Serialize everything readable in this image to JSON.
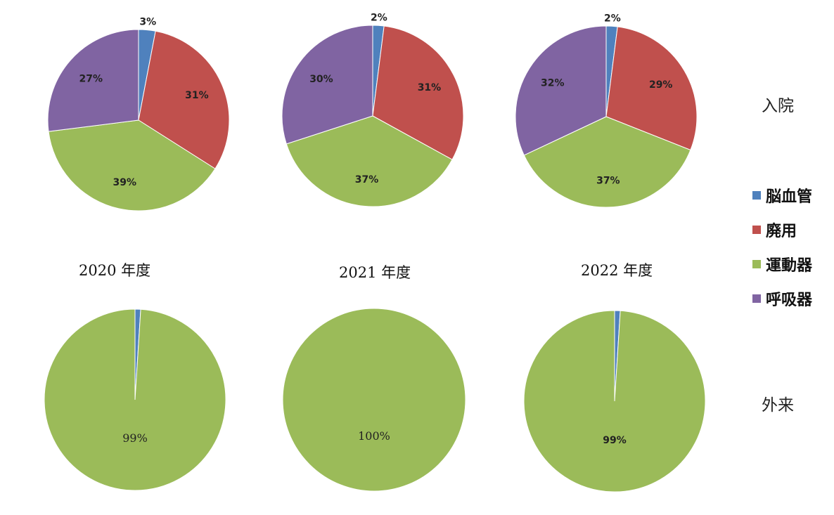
{
  "row_labels": {
    "inpatient": "入院",
    "outpatient": "外来"
  },
  "years": [
    "2020 年度",
    "2021 年度",
    "2022 年度"
  ],
  "legend": [
    {
      "label": "脳血管",
      "color": "#4f81bd"
    },
    {
      "label": "廃用",
      "color": "#c0504d"
    },
    {
      "label": "運動器",
      "color": "#9bbb59"
    },
    {
      "label": "呼吸器",
      "color": "#8064a2"
    }
  ],
  "chart_data": [
    {
      "type": "pie",
      "group": "入院",
      "year": "2020 年度",
      "labels": [
        "脳血管",
        "廃用",
        "運動器",
        "呼吸器"
      ],
      "values": [
        3,
        31,
        39,
        27
      ],
      "data_labels": [
        "3%",
        "31%",
        "39%",
        "27%"
      ]
    },
    {
      "type": "pie",
      "group": "入院",
      "year": "2021 年度",
      "labels": [
        "脳血管",
        "廃用",
        "運動器",
        "呼吸器"
      ],
      "values": [
        2,
        31,
        37,
        30
      ],
      "data_labels": [
        "2%",
        "31%",
        "37%",
        "30%"
      ]
    },
    {
      "type": "pie",
      "group": "入院",
      "year": "2022 年度",
      "labels": [
        "脳血管",
        "廃用",
        "運動器",
        "呼吸器"
      ],
      "values": [
        2,
        29,
        37,
        32
      ],
      "data_labels": [
        "2%",
        "29%",
        "37%",
        "32%"
      ]
    },
    {
      "type": "pie",
      "group": "外来",
      "year": "2020 年度",
      "labels": [
        "脳血管",
        "廃用",
        "運動器",
        "呼吸器"
      ],
      "values": [
        1,
        0,
        99,
        0
      ],
      "data_labels": [
        "",
        "",
        "99%",
        ""
      ]
    },
    {
      "type": "pie",
      "group": "外来",
      "year": "2021 年度",
      "labels": [
        "脳血管",
        "廃用",
        "運動器",
        "呼吸器"
      ],
      "values": [
        0,
        0,
        100,
        0
      ],
      "data_labels": [
        "",
        "",
        "100%",
        ""
      ]
    },
    {
      "type": "pie",
      "group": "外来",
      "year": "2022 年度",
      "labels": [
        "脳血管",
        "廃用",
        "運動器",
        "呼吸器"
      ],
      "values": [
        1,
        0,
        99,
        0
      ],
      "data_labels": [
        "",
        "",
        "99%",
        ""
      ]
    }
  ]
}
